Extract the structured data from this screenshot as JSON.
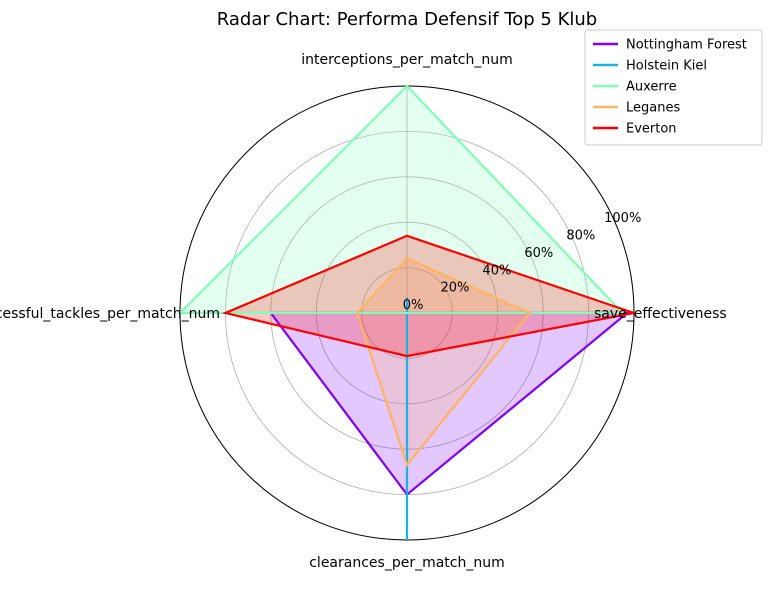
{
  "chart_data": {
    "type": "radar",
    "title": "Radar Chart: Performa Defensif Top 5 Klub",
    "axes": [
      "save_effectiveness",
      "interceptions_per_match_num",
      "successful_tackles_per_match_num",
      "clearances_per_match_num"
    ],
    "radial_ticks": [
      "0%",
      "20%",
      "40%",
      "60%",
      "80%",
      "100%"
    ],
    "radial_tick_values": [
      0,
      0.2,
      0.4,
      0.6,
      0.8,
      1.0
    ],
    "rlim": [
      0,
      1
    ],
    "grid": true,
    "legend_position": "top-right",
    "series": [
      {
        "name": "Nottingham Forest",
        "color": "#8000ff",
        "fill": true,
        "values": [
          0.97,
          0.0,
          0.6,
          0.8
        ]
      },
      {
        "name": "Holstein Kiel",
        "color": "#1ab2e6",
        "fill": false,
        "values": [
          0.0,
          0.07,
          0.0,
          1.0
        ]
      },
      {
        "name": "Auxerre",
        "color": "#80ffb4",
        "fill": true,
        "values": [
          0.95,
          1.0,
          1.0,
          0.0
        ]
      },
      {
        "name": "Leganes",
        "color": "#ffb360",
        "fill": true,
        "values": [
          0.54,
          0.24,
          0.22,
          0.67
        ]
      },
      {
        "name": "Everton",
        "color": "#ff0000",
        "fill": true,
        "values": [
          1.0,
          0.34,
          0.8,
          0.19
        ]
      }
    ]
  }
}
